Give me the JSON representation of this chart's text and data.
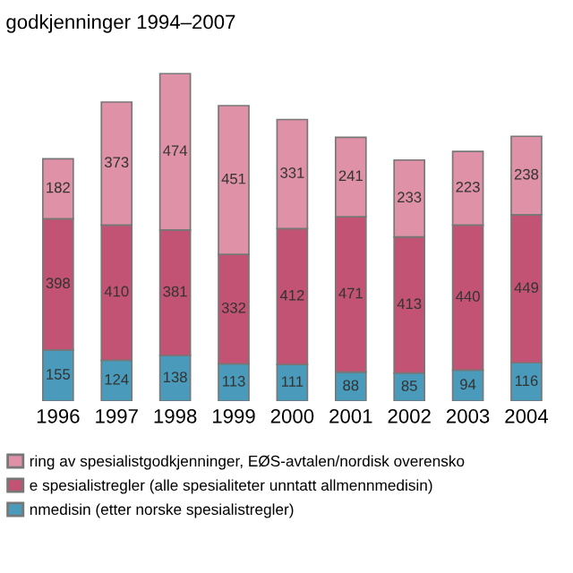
{
  "chart_data": {
    "type": "bar",
    "title": "godkjenninger 1994–2007",
    "categories": [
      "1996",
      "1997",
      "1998",
      "1999",
      "2000",
      "2001",
      "2002",
      "2003",
      "2004"
    ],
    "stacked": true,
    "data_labels": true,
    "legend": "bottom",
    "series": [
      {
        "name": "nmedisin (etter norske spesialistregler)",
        "color": "#4a9bbb",
        "values": [
          155,
          124,
          138,
          113,
          111,
          88,
          85,
          94,
          116
        ]
      },
      {
        "name": "e spesialistregler (alle spesialiteter unntatt allmennmedisin)",
        "color": "#c25374",
        "values": [
          398,
          410,
          381,
          332,
          412,
          471,
          413,
          440,
          449
        ]
      },
      {
        "name": "ring av spesialistgodkjenninger, EØS-avtalen/nordisk overensko",
        "color": "#de91a7",
        "values": [
          182,
          373,
          474,
          451,
          331,
          241,
          233,
          223,
          238
        ]
      }
    ]
  }
}
